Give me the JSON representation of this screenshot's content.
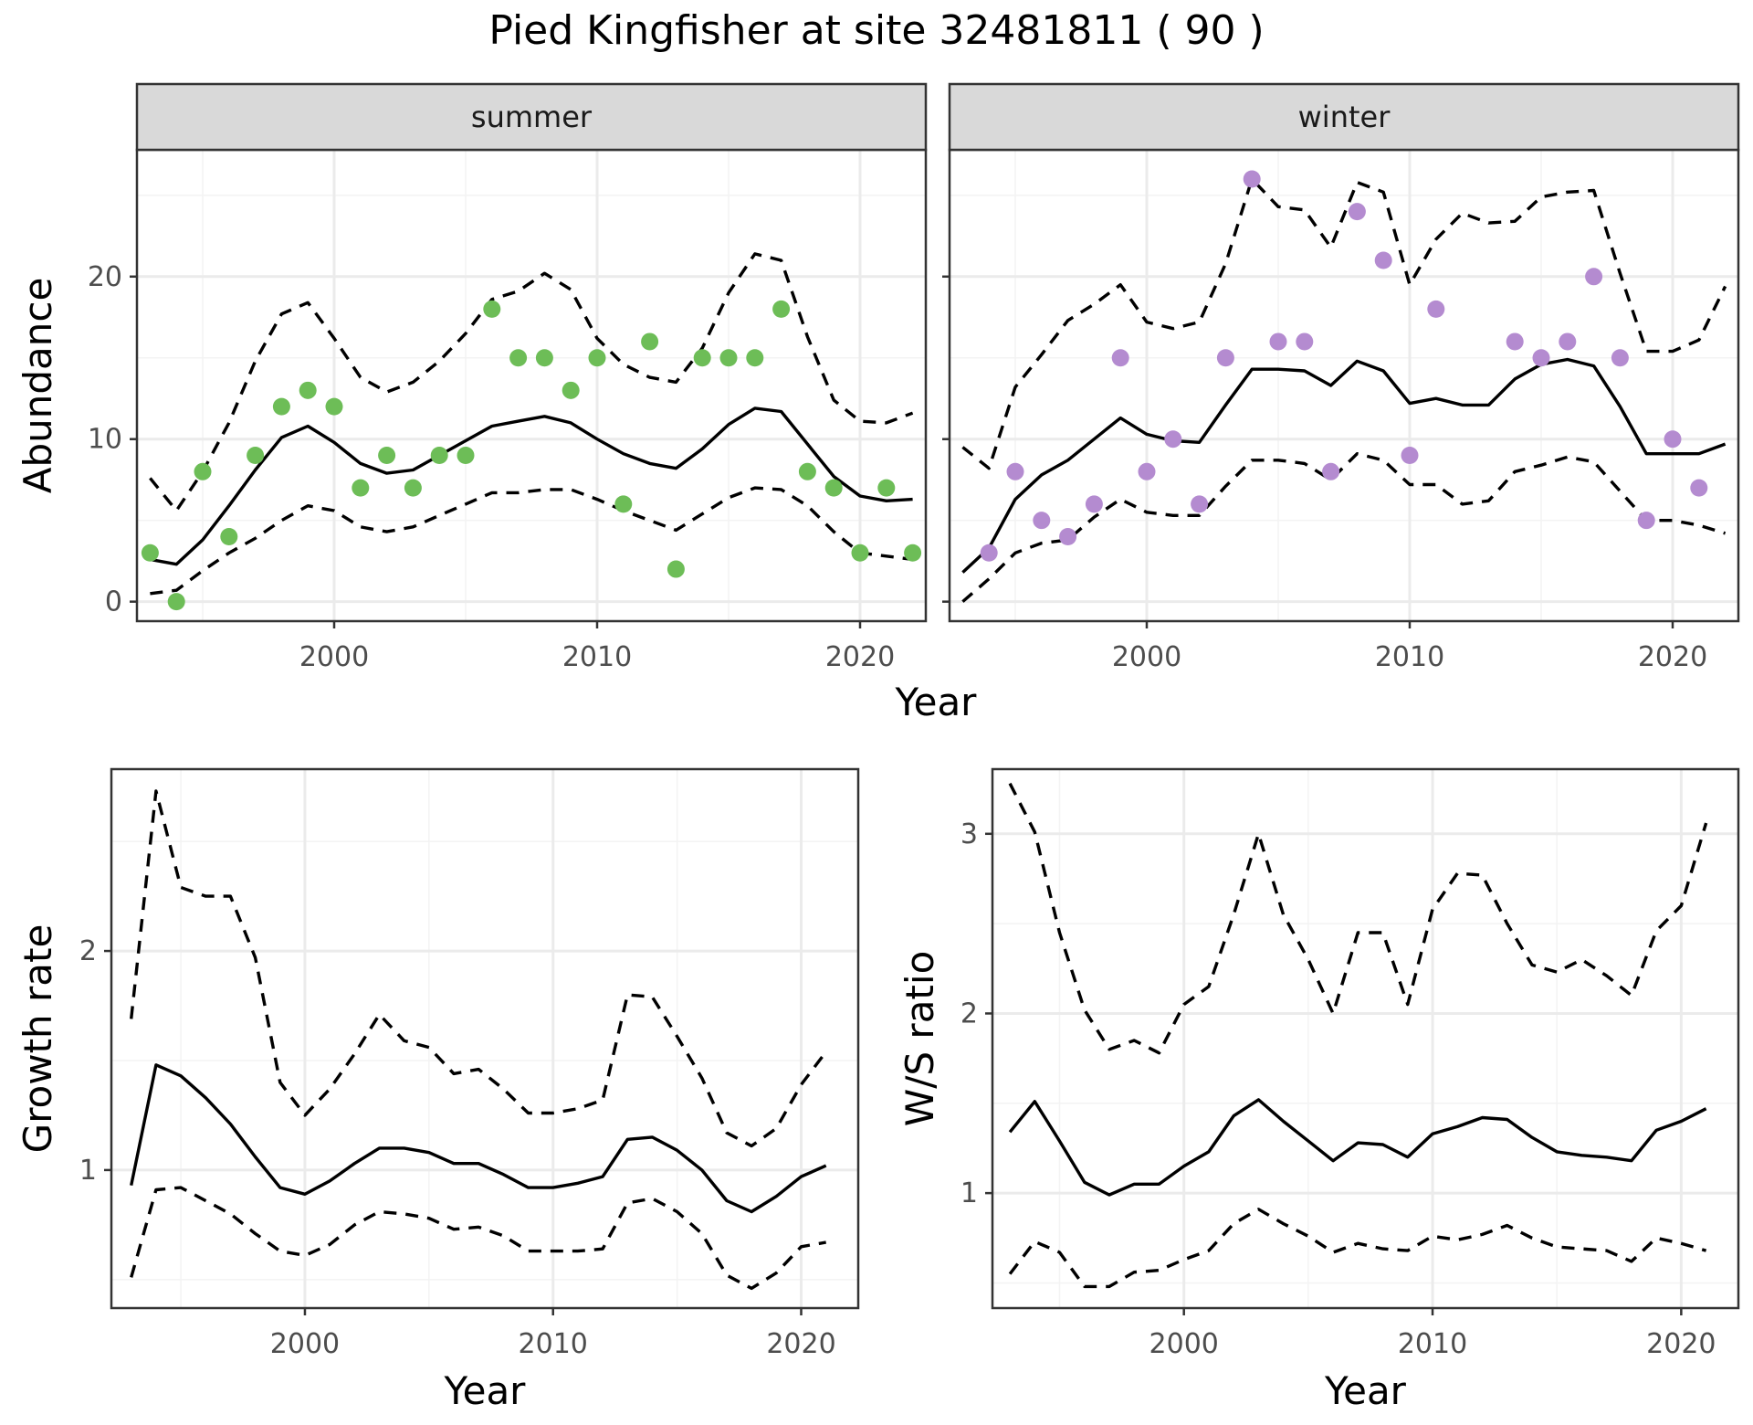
{
  "title": "Pied Kingfisher at site 32481811 ( 90 )",
  "colors": {
    "summer_points": "#6dbd57",
    "winter_points": "#b48bd0",
    "line": "#000000",
    "grid": "#ebebeb",
    "strip_fill": "#d9d9d9"
  },
  "chart_data": [
    {
      "id": "summer",
      "type": "scatter",
      "facet_label": "summer",
      "xlabel": "",
      "ylabel": "Abundance",
      "xlim": [
        1992.5,
        2022.5
      ],
      "ylim": [
        -1.2,
        27.8
      ],
      "x_ticks": [
        2000,
        2010,
        2020
      ],
      "y_ticks": [
        0,
        10,
        20
      ],
      "x_tick_labels": [
        "2000",
        "2010",
        "2020"
      ],
      "y_tick_labels": [
        "0",
        "10",
        "20"
      ],
      "grid": true,
      "point_color": "#6dbd57",
      "points": {
        "x": [
          1993,
          1994,
          1995,
          1996,
          1997,
          1998,
          1999,
          2000,
          2001,
          2002,
          2003,
          2004,
          2005,
          2006,
          2007,
          2008,
          2009,
          2010,
          2011,
          2012,
          2013,
          2014,
          2015,
          2016,
          2017,
          2018,
          2019,
          2020,
          2021,
          2022
        ],
        "y": [
          3,
          0,
          8,
          4,
          9,
          12,
          13,
          12,
          7,
          9,
          7,
          9,
          9,
          18,
          15,
          15,
          13,
          15,
          6,
          16,
          2,
          15,
          15,
          15,
          18,
          8,
          7,
          3,
          7,
          3
        ]
      },
      "series": [
        {
          "style": "solid",
          "x": [
            1993,
            1994,
            1995,
            1996,
            1997,
            1998,
            1999,
            2000,
            2001,
            2002,
            2003,
            2004,
            2005,
            2006,
            2007,
            2008,
            2009,
            2010,
            2011,
            2012,
            2013,
            2014,
            2015,
            2016,
            2017,
            2018,
            2019,
            2020,
            2021,
            2022
          ],
          "y": [
            2.6,
            2.3,
            3.8,
            5.9,
            8.1,
            10.1,
            10.8,
            9.8,
            8.5,
            7.9,
            8.1,
            9.0,
            9.9,
            10.8,
            11.1,
            11.4,
            11.0,
            10.0,
            9.1,
            8.5,
            8.2,
            9.4,
            10.9,
            11.9,
            11.7,
            9.7,
            7.7,
            6.5,
            6.2,
            6.3
          ]
        },
        {
          "style": "dashed",
          "x": [
            1993,
            1994,
            1995,
            1996,
            1997,
            1998,
            1999,
            2000,
            2001,
            2002,
            2003,
            2004,
            2005,
            2006,
            2007,
            2008,
            2009,
            2010,
            2011,
            2012,
            2013,
            2014,
            2015,
            2016,
            2017,
            2018,
            2019,
            2020,
            2021,
            2022
          ],
          "y": [
            7.6,
            5.6,
            8.0,
            11.0,
            14.8,
            17.7,
            18.4,
            16.2,
            13.8,
            12.9,
            13.5,
            14.8,
            16.5,
            18.6,
            19.1,
            20.2,
            19.2,
            16.2,
            14.6,
            13.8,
            13.5,
            15.6,
            19.0,
            21.4,
            21.0,
            16.3,
            12.4,
            11.1,
            11.0,
            11.6
          ]
        },
        {
          "style": "dashed",
          "x": [
            1993,
            1994,
            1995,
            1996,
            1997,
            1998,
            1999,
            2000,
            2001,
            2002,
            2003,
            2004,
            2005,
            2006,
            2007,
            2008,
            2009,
            2010,
            2011,
            2012,
            2013,
            2014,
            2015,
            2016,
            2017,
            2018,
            2019,
            2020,
            2021,
            2022
          ],
          "y": [
            0.5,
            0.7,
            1.9,
            3.0,
            3.9,
            5.0,
            5.9,
            5.6,
            4.6,
            4.3,
            4.6,
            5.3,
            6.0,
            6.7,
            6.7,
            6.9,
            6.9,
            6.3,
            5.6,
            5.0,
            4.4,
            5.4,
            6.4,
            7.0,
            6.9,
            5.9,
            4.3,
            3.0,
            2.8,
            2.6
          ]
        }
      ]
    },
    {
      "id": "winter",
      "type": "scatter",
      "facet_label": "winter",
      "xlabel": "",
      "ylabel": "",
      "xlim": [
        1992.5,
        2022.5
      ],
      "ylim": [
        -1.2,
        27.8
      ],
      "x_ticks": [
        2000,
        2010,
        2020
      ],
      "y_ticks": [
        0,
        10,
        20
      ],
      "x_tick_labels": [
        "2000",
        "2010",
        "2020"
      ],
      "y_tick_labels": [],
      "grid": true,
      "point_color": "#b48bd0",
      "points": {
        "x": [
          1994,
          1995,
          1996,
          1997,
          1998,
          1999,
          2000,
          2001,
          2002,
          2003,
          2004,
          2005,
          2006,
          2007,
          2008,
          2009,
          2010,
          2011,
          2014,
          2015,
          2016,
          2017,
          2018,
          2019,
          2020,
          2021
        ],
        "y": [
          3,
          8,
          5,
          4,
          6,
          15,
          8,
          10,
          6,
          15,
          26,
          16,
          16,
          8,
          24,
          21,
          9,
          18,
          16,
          15,
          16,
          20,
          15,
          5,
          10,
          7
        ]
      },
      "series": [
        {
          "style": "solid",
          "x": [
            1993,
            1994,
            1995,
            1996,
            1997,
            1998,
            1999,
            2000,
            2001,
            2002,
            2003,
            2004,
            2005,
            2006,
            2007,
            2008,
            2009,
            2010,
            2011,
            2012,
            2013,
            2014,
            2015,
            2016,
            2017,
            2018,
            2019,
            2020,
            2021,
            2022
          ],
          "y": [
            1.8,
            3.3,
            6.3,
            7.8,
            8.7,
            10.0,
            11.3,
            10.3,
            9.9,
            9.8,
            12.1,
            14.3,
            14.3,
            14.2,
            13.3,
            14.8,
            14.2,
            12.2,
            12.5,
            12.1,
            12.1,
            13.7,
            14.6,
            14.9,
            14.5,
            12.0,
            9.1,
            9.1,
            9.1,
            9.7
          ]
        },
        {
          "style": "dashed",
          "x": [
            1993,
            1994,
            1995,
            1996,
            1997,
            1998,
            1999,
            2000,
            2001,
            2002,
            2003,
            2004,
            2005,
            2006,
            2007,
            2008,
            2009,
            2010,
            2011,
            2012,
            2013,
            2014,
            2015,
            2016,
            2017,
            2018,
            2019,
            2020,
            2021,
            2022
          ],
          "y": [
            9.5,
            8.2,
            13.2,
            15.2,
            17.3,
            18.3,
            19.5,
            17.2,
            16.8,
            17.2,
            20.8,
            26.0,
            24.3,
            24.1,
            21.8,
            25.8,
            25.2,
            19.5,
            22.3,
            23.9,
            23.3,
            23.4,
            24.9,
            25.2,
            25.3,
            20.2,
            15.4,
            15.4,
            16.1,
            19.4
          ]
        },
        {
          "style": "dashed",
          "x": [
            1993,
            1994,
            1995,
            1996,
            1997,
            1998,
            1999,
            2000,
            2001,
            2002,
            2003,
            2004,
            2005,
            2006,
            2007,
            2008,
            2009,
            2010,
            2011,
            2012,
            2013,
            2014,
            2015,
            2016,
            2017,
            2018,
            2019,
            2020,
            2021,
            2022
          ],
          "y": [
            0.0,
            1.4,
            3.0,
            3.6,
            3.8,
            5.2,
            6.3,
            5.5,
            5.3,
            5.3,
            7.1,
            8.7,
            8.7,
            8.5,
            7.5,
            9.1,
            8.7,
            7.2,
            7.2,
            6.0,
            6.2,
            8.0,
            8.4,
            8.9,
            8.6,
            6.8,
            5.0,
            5.0,
            4.7,
            4.2
          ]
        }
      ]
    },
    {
      "id": "growth",
      "type": "line",
      "xlabel": "Year",
      "ylabel": "Growth rate",
      "xlim": [
        1992.2,
        2022.3
      ],
      "ylim": [
        0.37,
        2.83
      ],
      "x_ticks": [
        2000,
        2010,
        2020
      ],
      "y_ticks": [
        1,
        2
      ],
      "x_tick_labels": [
        "2000",
        "2010",
        "2020"
      ],
      "y_tick_labels": [
        "1",
        "2"
      ],
      "grid": true,
      "series": [
        {
          "style": "solid",
          "x": [
            1993,
            1994,
            1995,
            1996,
            1997,
            1998,
            1999,
            2000,
            2001,
            2002,
            2003,
            2004,
            2005,
            2006,
            2007,
            2008,
            2009,
            2010,
            2011,
            2012,
            2013,
            2014,
            2015,
            2016,
            2017,
            2018,
            2019,
            2020,
            2021
          ],
          "y": [
            0.93,
            1.48,
            1.43,
            1.33,
            1.21,
            1.06,
            0.92,
            0.89,
            0.95,
            1.03,
            1.1,
            1.1,
            1.08,
            1.03,
            1.03,
            0.98,
            0.92,
            0.92,
            0.94,
            0.97,
            1.14,
            1.15,
            1.09,
            1.0,
            0.86,
            0.81,
            0.88,
            0.97,
            1.02
          ]
        },
        {
          "style": "dashed",
          "x": [
            1993,
            1994,
            1995,
            1996,
            1997,
            1998,
            1999,
            2000,
            2001,
            2002,
            2003,
            2004,
            2005,
            2006,
            2007,
            2008,
            2009,
            2010,
            2011,
            2012,
            2013,
            2014,
            2015,
            2016,
            2017,
            2018,
            2019,
            2020,
            2021
          ],
          "y": [
            1.69,
            2.73,
            2.29,
            2.25,
            2.25,
            1.97,
            1.4,
            1.25,
            1.37,
            1.53,
            1.71,
            1.59,
            1.56,
            1.44,
            1.46,
            1.37,
            1.26,
            1.26,
            1.28,
            1.32,
            1.8,
            1.79,
            1.61,
            1.42,
            1.17,
            1.11,
            1.19,
            1.39,
            1.54
          ]
        },
        {
          "style": "dashed",
          "x": [
            1993,
            1994,
            1995,
            1996,
            1997,
            1998,
            1999,
            2000,
            2001,
            2002,
            2003,
            2004,
            2005,
            2006,
            2007,
            2008,
            2009,
            2010,
            2011,
            2012,
            2013,
            2014,
            2015,
            2016,
            2017,
            2018,
            2019,
            2020,
            2021
          ],
          "y": [
            0.51,
            0.91,
            0.92,
            0.86,
            0.8,
            0.71,
            0.63,
            0.61,
            0.66,
            0.75,
            0.81,
            0.8,
            0.78,
            0.73,
            0.74,
            0.7,
            0.63,
            0.63,
            0.63,
            0.64,
            0.85,
            0.87,
            0.81,
            0.71,
            0.52,
            0.46,
            0.53,
            0.65,
            0.67
          ]
        }
      ]
    },
    {
      "id": "ws_ratio",
      "type": "line",
      "xlabel": "Year",
      "ylabel": "W/S ratio",
      "xlim": [
        1992.3,
        2022.3
      ],
      "ylim": [
        0.36,
        3.36
      ],
      "x_ticks": [
        2000,
        2010,
        2020
      ],
      "y_ticks": [
        1,
        2,
        3
      ],
      "x_tick_labels": [
        "2000",
        "2010",
        "2020"
      ],
      "y_tick_labels": [
        "1",
        "2",
        "3"
      ],
      "grid": true,
      "series": [
        {
          "style": "solid",
          "x": [
            1993,
            1994,
            1995,
            1996,
            1997,
            1998,
            1999,
            2000,
            2001,
            2002,
            2003,
            2004,
            2005,
            2006,
            2007,
            2008,
            2009,
            2010,
            2011,
            2012,
            2013,
            2014,
            2015,
            2016,
            2017,
            2018,
            2019,
            2020,
            2021
          ],
          "y": [
            1.34,
            1.51,
            1.29,
            1.06,
            0.99,
            1.05,
            1.05,
            1.15,
            1.23,
            1.43,
            1.52,
            1.4,
            1.29,
            1.18,
            1.28,
            1.27,
            1.2,
            1.33,
            1.37,
            1.42,
            1.41,
            1.31,
            1.23,
            1.21,
            1.2,
            1.18,
            1.35,
            1.4,
            1.47
          ]
        },
        {
          "style": "dashed",
          "x": [
            1993,
            1994,
            1995,
            1996,
            1997,
            1998,
            1999,
            2000,
            2001,
            2002,
            2003,
            2004,
            2005,
            2006,
            2007,
            2008,
            2009,
            2010,
            2011,
            2012,
            2013,
            2014,
            2015,
            2016,
            2017,
            2018,
            2019,
            2020,
            2021
          ],
          "y": [
            3.28,
            3.01,
            2.45,
            2.02,
            1.8,
            1.85,
            1.78,
            2.05,
            2.15,
            2.55,
            3.0,
            2.55,
            2.3,
            2.0,
            2.45,
            2.45,
            2.05,
            2.58,
            2.78,
            2.77,
            2.5,
            2.27,
            2.23,
            2.3,
            2.21,
            2.1,
            2.46,
            2.6,
            3.06
          ]
        },
        {
          "style": "dashed",
          "x": [
            1993,
            1994,
            1995,
            1996,
            1997,
            1998,
            1999,
            2000,
            2001,
            2002,
            2003,
            2004,
            2005,
            2006,
            2007,
            2008,
            2009,
            2010,
            2011,
            2012,
            2013,
            2014,
            2015,
            2016,
            2017,
            2018,
            2019,
            2020,
            2021
          ],
          "y": [
            0.55,
            0.73,
            0.67,
            0.48,
            0.48,
            0.56,
            0.57,
            0.63,
            0.68,
            0.83,
            0.91,
            0.83,
            0.76,
            0.67,
            0.72,
            0.69,
            0.68,
            0.76,
            0.74,
            0.77,
            0.82,
            0.75,
            0.7,
            0.69,
            0.68,
            0.62,
            0.75,
            0.72,
            0.68
          ]
        }
      ]
    }
  ],
  "shared_xlabel": "Year"
}
